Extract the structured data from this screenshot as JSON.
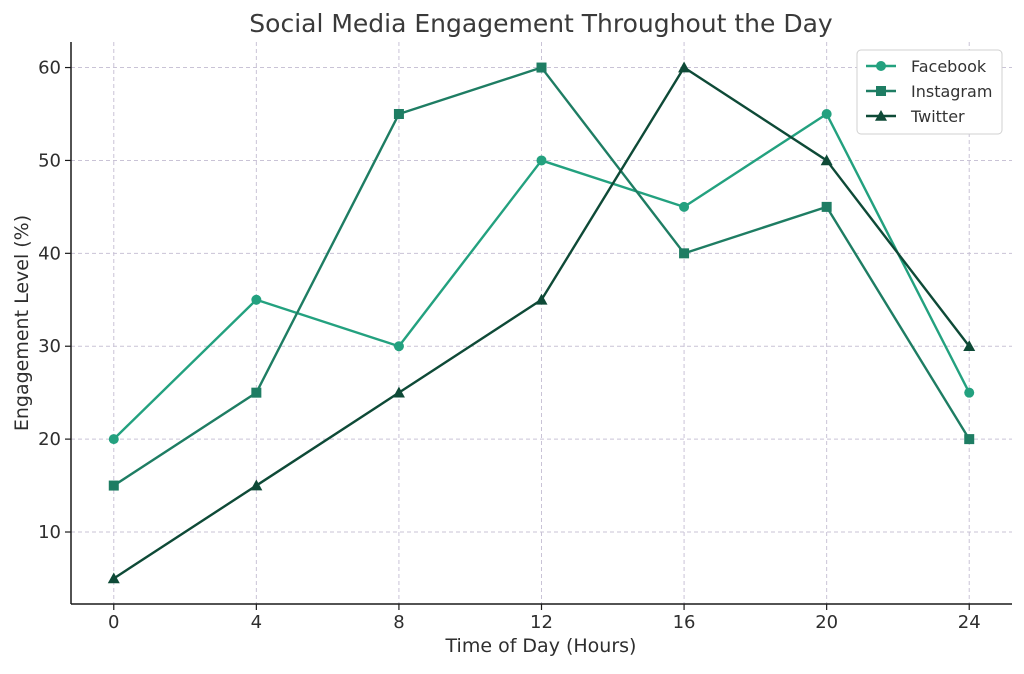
{
  "chart_data": {
    "type": "line",
    "title": "Social Media Engagement Throughout the Day",
    "xlabel": "Time of Day (Hours)",
    "ylabel": "Engagement Level (%)",
    "x": [
      0,
      4,
      8,
      12,
      16,
      20,
      24
    ],
    "xlim": [
      -1.2,
      25.2
    ],
    "ylim": [
      2.25,
      62.75
    ],
    "xticks": [
      0,
      4,
      8,
      12,
      16,
      20,
      24
    ],
    "yticks": [
      10,
      20,
      30,
      40,
      50,
      60
    ],
    "grid": true,
    "legend_position": "top-right",
    "series": [
      {
        "name": "Facebook",
        "color": "#23a17f",
        "marker": "circle",
        "values": [
          20,
          35,
          30,
          50,
          45,
          55,
          25
        ]
      },
      {
        "name": "Instagram",
        "color": "#1e7d63",
        "marker": "square",
        "values": [
          15,
          25,
          55,
          60,
          40,
          45,
          20
        ]
      },
      {
        "name": "Twitter",
        "color": "#0e4a37",
        "marker": "triangle",
        "values": [
          5,
          15,
          25,
          35,
          60,
          50,
          30
        ]
      }
    ]
  }
}
